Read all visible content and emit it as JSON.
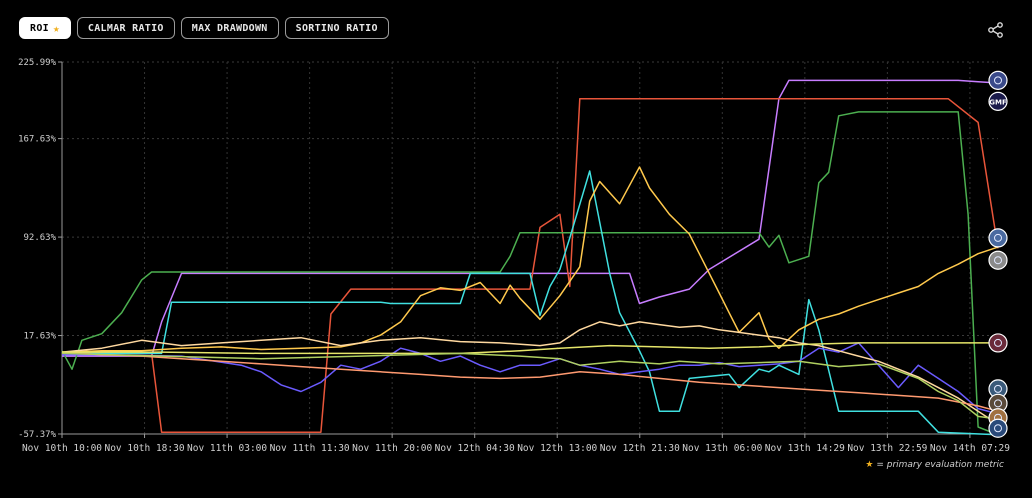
{
  "tabs": [
    {
      "label": "ROI",
      "active": true,
      "starred": true
    },
    {
      "label": "CALMAR RATIO",
      "active": false
    },
    {
      "label": "MAX DRAWDOWN",
      "active": false
    },
    {
      "label": "SORTINO RATIO",
      "active": false
    }
  ],
  "footnote": {
    "star": "★",
    "text": " = primary evaluation metric"
  },
  "icons": [
    "share-icon"
  ],
  "chart_data": {
    "type": "line",
    "y_ticks": [
      "225.99%",
      "167.63%",
      "92.63%",
      "17.63%",
      "-57.37%"
    ],
    "y_tick_values": [
      225.99,
      167.63,
      92.63,
      17.63,
      -57.37
    ],
    "ylim": [
      -57.37,
      225.99
    ],
    "x_ticks": [
      "Nov 10th 10:00",
      "Nov 10th 18:30",
      "Nov 11th 03:00",
      "Nov 11th 11:30",
      "Nov 11th 20:00",
      "Nov 12th 04:30",
      "Nov 12th 13:00",
      "Nov 12th 21:30",
      "Nov 13th 06:00",
      "Nov 13th 14:29",
      "Nov 13th 22:59",
      "Nov 14th 07:29"
    ],
    "x_range_hours": [
      0,
      94
    ],
    "grid": true,
    "end_labels": [
      {
        "text": "",
        "y": 212
      },
      {
        "text": "GMF",
        "y": 196
      },
      {
        "text": "",
        "y": 92
      },
      {
        "text": "",
        "y": 75
      },
      {
        "text": "",
        "y": 12
      },
      {
        "text": "",
        "y": -23
      },
      {
        "text": "",
        "y": -34
      },
      {
        "text": "",
        "y": -45
      },
      {
        "text": "",
        "y": -53
      }
    ],
    "series": [
      {
        "color": "#c77dff",
        "points": [
          [
            0,
            2
          ],
          [
            9,
            2
          ],
          [
            10,
            28
          ],
          [
            12,
            65
          ],
          [
            30,
            65
          ],
          [
            57,
            65
          ],
          [
            58,
            42
          ],
          [
            60,
            47
          ],
          [
            63,
            53
          ],
          [
            65,
            68
          ],
          [
            70,
            91
          ],
          [
            72,
            198
          ],
          [
            73,
            212
          ],
          [
            90,
            212
          ],
          [
            92,
            211
          ],
          [
            94,
            210
          ]
        ]
      },
      {
        "color": "#e8553a",
        "points": [
          [
            0,
            4
          ],
          [
            9,
            4
          ],
          [
            10,
            -56
          ],
          [
            26,
            -56
          ],
          [
            27,
            34
          ],
          [
            29,
            53
          ],
          [
            47,
            53
          ],
          [
            48,
            100
          ],
          [
            50,
            110
          ],
          [
            51,
            55
          ],
          [
            52,
            198
          ],
          [
            60,
            198
          ],
          [
            80,
            198
          ],
          [
            89,
            198
          ],
          [
            92,
            180
          ],
          [
            94,
            84
          ]
        ]
      },
      {
        "color": "#4caf50",
        "points": [
          [
            0,
            6
          ],
          [
            1,
            -8
          ],
          [
            2,
            14
          ],
          [
            4,
            19
          ],
          [
            6,
            35
          ],
          [
            8,
            60
          ],
          [
            9,
            66
          ],
          [
            31,
            66
          ],
          [
            44,
            66
          ],
          [
            45,
            78
          ],
          [
            46,
            96
          ],
          [
            60,
            96
          ],
          [
            70,
            96
          ],
          [
            71,
            85
          ],
          [
            72,
            94
          ],
          [
            73,
            73
          ],
          [
            75,
            78
          ],
          [
            76,
            134
          ],
          [
            77,
            142
          ],
          [
            78,
            185
          ],
          [
            80,
            188
          ],
          [
            90,
            188
          ],
          [
            91,
            110
          ],
          [
            92,
            -52
          ],
          [
            94,
            -58
          ]
        ]
      },
      {
        "color": "#40e0e0",
        "points": [
          [
            0,
            4
          ],
          [
            10,
            4
          ],
          [
            11,
            43
          ],
          [
            32,
            43
          ],
          [
            33,
            42
          ],
          [
            40,
            42
          ],
          [
            41,
            65
          ],
          [
            47,
            65
          ],
          [
            48,
            33
          ],
          [
            49,
            55
          ],
          [
            50,
            68
          ],
          [
            51,
            92
          ],
          [
            53,
            143
          ],
          [
            55,
            65
          ],
          [
            56,
            35
          ],
          [
            58,
            6
          ],
          [
            59,
            -10
          ],
          [
            60,
            -40
          ],
          [
            62,
            -40
          ],
          [
            63,
            -15
          ],
          [
            67,
            -12
          ],
          [
            68,
            -22
          ],
          [
            70,
            -8
          ],
          [
            71,
            -10
          ],
          [
            72,
            -5
          ],
          [
            74,
            -12
          ],
          [
            75,
            45
          ],
          [
            76,
            22
          ],
          [
            78,
            -40
          ],
          [
            86,
            -40
          ],
          [
            88,
            -56
          ],
          [
            94,
            -58
          ]
        ]
      },
      {
        "color": "#ffc94d",
        "points": [
          [
            0,
            5
          ],
          [
            4,
            6
          ],
          [
            8,
            6
          ],
          [
            12,
            8
          ],
          [
            16,
            9
          ],
          [
            20,
            7
          ],
          [
            24,
            8
          ],
          [
            28,
            9
          ],
          [
            30,
            12
          ],
          [
            32,
            18
          ],
          [
            34,
            28
          ],
          [
            36,
            48
          ],
          [
            38,
            54
          ],
          [
            40,
            52
          ],
          [
            42,
            58
          ],
          [
            44,
            42
          ],
          [
            45,
            56
          ],
          [
            46,
            46
          ],
          [
            48,
            30
          ],
          [
            50,
            48
          ],
          [
            52,
            70
          ],
          [
            53,
            120
          ],
          [
            54,
            135
          ],
          [
            56,
            118
          ],
          [
            58,
            146
          ],
          [
            59,
            130
          ],
          [
            61,
            110
          ],
          [
            63,
            95
          ],
          [
            64,
            80
          ],
          [
            66,
            50
          ],
          [
            67,
            35
          ],
          [
            68,
            20
          ],
          [
            70,
            35
          ],
          [
            71,
            15
          ],
          [
            72,
            8
          ],
          [
            74,
            22
          ],
          [
            76,
            30
          ],
          [
            78,
            34
          ],
          [
            80,
            40
          ],
          [
            82,
            45
          ],
          [
            84,
            50
          ],
          [
            86,
            55
          ],
          [
            88,
            65
          ],
          [
            90,
            72
          ],
          [
            92,
            80
          ],
          [
            94,
            85
          ]
        ]
      },
      {
        "color": "#6b5bff",
        "points": [
          [
            0,
            3
          ],
          [
            4,
            3
          ],
          [
            12,
            2
          ],
          [
            18,
            -5
          ],
          [
            20,
            -10
          ],
          [
            22,
            -20
          ],
          [
            24,
            -25
          ],
          [
            26,
            -18
          ],
          [
            28,
            -5
          ],
          [
            30,
            -8
          ],
          [
            32,
            -2
          ],
          [
            34,
            8
          ],
          [
            36,
            4
          ],
          [
            38,
            -2
          ],
          [
            40,
            2
          ],
          [
            42,
            -5
          ],
          [
            44,
            -10
          ],
          [
            46,
            -5
          ],
          [
            48,
            -5
          ],
          [
            50,
            0
          ],
          [
            52,
            -5
          ],
          [
            54,
            -8
          ],
          [
            56,
            -12
          ],
          [
            58,
            -10
          ],
          [
            60,
            -8
          ],
          [
            62,
            -5
          ],
          [
            64,
            -5
          ],
          [
            66,
            -3
          ],
          [
            68,
            -6
          ],
          [
            70,
            -5
          ],
          [
            72,
            -4
          ],
          [
            74,
            -2
          ],
          [
            76,
            8
          ],
          [
            78,
            5
          ],
          [
            80,
            12
          ],
          [
            82,
            -5
          ],
          [
            84,
            -22
          ],
          [
            86,
            -5
          ],
          [
            88,
            -15
          ],
          [
            90,
            -25
          ],
          [
            92,
            -38
          ],
          [
            94,
            -42
          ]
        ]
      },
      {
        "color": "#ffd9a0",
        "points": [
          [
            0,
            5
          ],
          [
            4,
            8
          ],
          [
            8,
            14
          ],
          [
            12,
            10
          ],
          [
            16,
            12
          ],
          [
            20,
            14
          ],
          [
            24,
            16
          ],
          [
            28,
            10
          ],
          [
            32,
            14
          ],
          [
            36,
            16
          ],
          [
            40,
            13
          ],
          [
            44,
            12
          ],
          [
            48,
            10
          ],
          [
            50,
            12
          ],
          [
            52,
            22
          ],
          [
            54,
            28
          ],
          [
            56,
            25
          ],
          [
            58,
            28
          ],
          [
            60,
            26
          ],
          [
            62,
            24
          ],
          [
            64,
            25
          ],
          [
            66,
            22
          ],
          [
            68,
            20
          ],
          [
            70,
            18
          ],
          [
            72,
            16
          ],
          [
            74,
            12
          ],
          [
            76,
            10
          ],
          [
            78,
            6
          ],
          [
            80,
            2
          ],
          [
            82,
            -2
          ],
          [
            84,
            -8
          ],
          [
            86,
            -14
          ],
          [
            88,
            -22
          ],
          [
            90,
            -30
          ],
          [
            92,
            -40
          ],
          [
            94,
            -50
          ]
        ]
      },
      {
        "color": "#ff9a70",
        "points": [
          [
            0,
            5
          ],
          [
            4,
            3
          ],
          [
            8,
            2
          ],
          [
            12,
            0
          ],
          [
            16,
            -2
          ],
          [
            20,
            -4
          ],
          [
            24,
            -6
          ],
          [
            28,
            -8
          ],
          [
            32,
            -10
          ],
          [
            36,
            -12
          ],
          [
            40,
            -14
          ],
          [
            44,
            -15
          ],
          [
            48,
            -14
          ],
          [
            52,
            -10
          ],
          [
            56,
            -12
          ],
          [
            60,
            -15
          ],
          [
            64,
            -18
          ],
          [
            68,
            -20
          ],
          [
            72,
            -22
          ],
          [
            76,
            -24
          ],
          [
            80,
            -26
          ],
          [
            84,
            -28
          ],
          [
            88,
            -30
          ],
          [
            92,
            -36
          ],
          [
            94,
            -40
          ]
        ]
      },
      {
        "color": "#e6e66a",
        "points": [
          [
            0,
            5
          ],
          [
            10,
            5
          ],
          [
            20,
            4
          ],
          [
            30,
            4
          ],
          [
            40,
            4
          ],
          [
            46,
            6
          ],
          [
            50,
            8
          ],
          [
            55,
            10
          ],
          [
            60,
            9
          ],
          [
            65,
            8
          ],
          [
            70,
            9
          ],
          [
            75,
            11
          ],
          [
            80,
            12
          ],
          [
            85,
            12
          ],
          [
            90,
            12
          ],
          [
            94,
            12
          ]
        ]
      },
      {
        "color": "#b0d060",
        "points": [
          [
            0,
            4
          ],
          [
            10,
            2
          ],
          [
            20,
            0
          ],
          [
            30,
            2
          ],
          [
            40,
            4
          ],
          [
            46,
            2
          ],
          [
            50,
            0
          ],
          [
            52,
            -5
          ],
          [
            56,
            -2
          ],
          [
            60,
            -4
          ],
          [
            62,
            -2
          ],
          [
            66,
            -4
          ],
          [
            70,
            -3
          ],
          [
            74,
            -2
          ],
          [
            78,
            -6
          ],
          [
            82,
            -4
          ],
          [
            86,
            -15
          ],
          [
            88,
            -25
          ],
          [
            90,
            -32
          ],
          [
            92,
            -44
          ],
          [
            94,
            -46
          ]
        ]
      }
    ]
  }
}
